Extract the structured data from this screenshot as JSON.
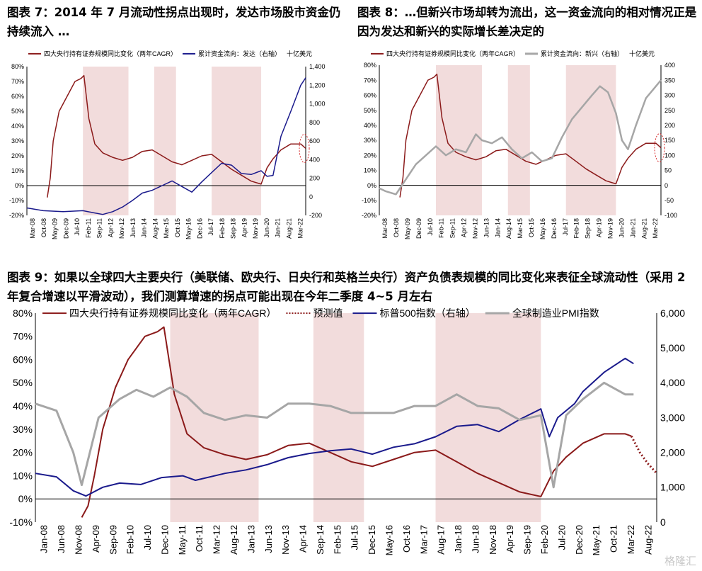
{
  "captions": {
    "fig7": "图表 7：2014 年 7 月流动性拐点出现时，发达市场股市资金仍持续流入 …",
    "fig8": "图表 8：…但新兴市场却转为流出，这一资金流向的相对情况正是因为发达和新兴的实际增长差决定的",
    "fig9": "图表 9：如果以全球四大主要央行（美联储、欧央行、日央行和英格兰央行）资产负债表规模的同比变化来表征全球流动性（采用 2 年复合增速以平滑波动），我们测算增速的拐点可能出现在今年二季度 4~5 月左右"
  },
  "watermark": "格隆汇",
  "colors": {
    "dark_red": "#8b1a1a",
    "navy": "#1a1a8c",
    "gray": "#a6a6a6",
    "shade": "#f2dcdc",
    "forecast": "#8b1a1a",
    "annotation": "#d62728"
  },
  "chart_data": [
    {
      "id": "fig7",
      "type": "line",
      "title": "",
      "legend": {
        "placement": "top",
        "items": [
          "四大央行持有证券规模同比变化（两年CAGR）",
          "累计资金流向：发达（右轴）",
          "十亿美元"
        ]
      },
      "x_tick_labels": [
        "Mar-08",
        "Oct-08",
        "May-09",
        "Dec-09",
        "Jul-10",
        "Feb-11",
        "Sep-11",
        "Apr-12",
        "Nov-12",
        "Jun-13",
        "Jan-14",
        "Aug-14",
        "Mar-15",
        "Oct-15",
        "May-16",
        "Dec-16",
        "Jul-17",
        "Feb-18",
        "Sep-18",
        "Apr-19",
        "Nov-19",
        "Jun-20",
        "Jan-21",
        "Aug-21",
        "Mar-22"
      ],
      "x_range": [
        2008.17,
        2022.25
      ],
      "y_left": {
        "range": [
          -20,
          80
        ],
        "ticks": [
          "-20%",
          "-10%",
          "0%",
          "10%",
          "20%",
          "30%",
          "40%",
          "50%",
          "60%",
          "70%",
          "80%"
        ]
      },
      "y_right": {
        "range": [
          -200,
          1400
        ],
        "ticks": [
          "-200",
          "0",
          "200",
          "400",
          "600",
          "800",
          "1,000",
          "1,200",
          "1,400"
        ]
      },
      "shaded_periods": [
        [
          2011.0,
          2013.3
        ],
        [
          2014.6,
          2015.7
        ],
        [
          2017.5,
          2020.0
        ]
      ],
      "series": [
        {
          "name": "四大央行持有证券规模同比变化（两年CAGR）",
          "axis": "left",
          "color": "#8b1a1a",
          "x": [
            2009.2,
            2009.35,
            2009.5,
            2009.8,
            2010.2,
            2010.6,
            2010.9,
            2011.05,
            2011.3,
            2011.6,
            2012.0,
            2012.5,
            2013.0,
            2013.5,
            2014.0,
            2014.5,
            2015.0,
            2015.5,
            2016.0,
            2016.5,
            2017.0,
            2017.5,
            2018.0,
            2018.5,
            2019.0,
            2019.5,
            2020.0,
            2020.3,
            2020.6,
            2021.0,
            2021.5,
            2022.0,
            2022.25
          ],
          "y": [
            -8,
            5,
            30,
            50,
            60,
            70,
            72,
            74,
            45,
            28,
            22,
            19,
            17,
            19,
            23,
            24,
            20,
            16,
            14,
            17,
            20,
            21,
            16,
            11,
            7,
            3,
            1,
            12,
            18,
            24,
            28,
            28,
            25
          ]
        },
        {
          "name": "累计资金流向：发达（右轴）",
          "axis": "right",
          "color": "#1a1a8c",
          "x": [
            2008.17,
            2009.0,
            2010.0,
            2011.0,
            2011.5,
            2012.0,
            2012.5,
            2013.0,
            2013.5,
            2014.0,
            2014.5,
            2015.0,
            2015.5,
            2016.0,
            2016.5,
            2017.0,
            2017.5,
            2018.0,
            2018.5,
            2019.0,
            2019.5,
            2020.0,
            2020.3,
            2020.6,
            2021.0,
            2021.5,
            2022.0,
            2022.25
          ],
          "y": [
            -120,
            -150,
            -160,
            -150,
            -170,
            -190,
            -160,
            -110,
            -40,
            40,
            70,
            120,
            170,
            110,
            50,
            160,
            260,
            360,
            340,
            250,
            240,
            280,
            220,
            230,
            650,
            920,
            1200,
            1280
          ]
        }
      ],
      "annotation": "dashed-circle-at-Mar-22"
    },
    {
      "id": "fig8",
      "type": "line",
      "title": "",
      "legend": {
        "placement": "top",
        "items": [
          "四大央行持有证券规模同比变化（两年CAGR）",
          "累计资金流向：新兴（右轴）",
          "十亿美元"
        ]
      },
      "x_tick_labels": [
        "Mar-08",
        "Oct-08",
        "May-09",
        "Dec-09",
        "Jul-10",
        "Feb-11",
        "Sep-11",
        "Apr-12",
        "Nov-12",
        "Jun-13",
        "Jan-14",
        "Aug-14",
        "Mar-15",
        "Oct-15",
        "May-16",
        "Dec-16",
        "Jul-17",
        "Feb-18",
        "Sep-18",
        "Apr-19",
        "Nov-19",
        "Jun-20",
        "Jan-21",
        "Aug-21",
        "Mar-22"
      ],
      "x_range": [
        2008.17,
        2022.25
      ],
      "y_left": {
        "range": [
          -20,
          80
        ],
        "ticks": [
          "-20%",
          "-10%",
          "0%",
          "10%",
          "20%",
          "30%",
          "40%",
          "50%",
          "60%",
          "70%",
          "80%"
        ]
      },
      "y_right": {
        "range": [
          -100,
          400
        ],
        "ticks": [
          "-100",
          "-50",
          "0",
          "50",
          "100",
          "150",
          "200",
          "250",
          "300",
          "350",
          "400"
        ]
      },
      "shaded_periods": [
        [
          2011.0,
          2013.3
        ],
        [
          2014.6,
          2015.7
        ],
        [
          2017.5,
          2020.0
        ]
      ],
      "series": [
        {
          "name": "四大央行持有证券规模同比变化（两年CAGR）",
          "axis": "left",
          "color": "#8b1a1a",
          "x": [
            2009.2,
            2009.35,
            2009.5,
            2009.8,
            2010.2,
            2010.6,
            2010.9,
            2011.05,
            2011.3,
            2011.6,
            2012.0,
            2012.5,
            2013.0,
            2013.5,
            2014.0,
            2014.5,
            2015.0,
            2015.5,
            2016.0,
            2016.5,
            2017.0,
            2017.5,
            2018.0,
            2018.5,
            2019.0,
            2019.5,
            2020.0,
            2020.3,
            2020.6,
            2021.0,
            2021.5,
            2022.0,
            2022.25
          ],
          "y": [
            -8,
            5,
            30,
            50,
            60,
            70,
            72,
            74,
            45,
            28,
            22,
            19,
            17,
            19,
            23,
            24,
            20,
            16,
            14,
            17,
            20,
            21,
            16,
            11,
            7,
            3,
            1,
            12,
            18,
            24,
            28,
            28,
            25
          ]
        },
        {
          "name": "累计资金流向：新兴（右轴）",
          "axis": "right",
          "color": "#a6a6a6",
          "x": [
            2008.17,
            2008.5,
            2009.0,
            2009.5,
            2010.0,
            2010.5,
            2011.0,
            2011.5,
            2012.0,
            2012.5,
            2013.0,
            2013.3,
            2013.8,
            2014.3,
            2014.8,
            2015.3,
            2015.8,
            2016.3,
            2016.8,
            2017.3,
            2017.8,
            2018.3,
            2018.8,
            2019.2,
            2019.6,
            2020.0,
            2020.3,
            2020.6,
            2021.0,
            2021.5,
            2022.0,
            2022.25
          ],
          "y": [
            -10,
            -20,
            -30,
            20,
            70,
            100,
            130,
            100,
            120,
            110,
            170,
            150,
            140,
            160,
            120,
            90,
            110,
            80,
            90,
            160,
            220,
            260,
            300,
            330,
            310,
            240,
            150,
            120,
            200,
            290,
            330,
            350
          ]
        }
      ],
      "annotation": "dashed-circle-at-Mar-22"
    },
    {
      "id": "fig9",
      "type": "line",
      "title": "",
      "legend": {
        "placement": "top",
        "items": [
          "四大央行持有证券规模同比变化（两年CAGR）",
          "预测值",
          "标普500指数（右轴）",
          "全球制造业PMI指数"
        ]
      },
      "x_tick_labels": [
        "Jan-08",
        "Jun-08",
        "Nov-08",
        "Apr-09",
        "Sep-09",
        "Feb-10",
        "Jul-10",
        "Dec-10",
        "May-11",
        "Oct-11",
        "Mar-12",
        "Aug-12",
        "Jan-13",
        "Jun-13",
        "Nov-13",
        "Apr-14",
        "Sep-14",
        "Feb-15",
        "Jul-15",
        "Dec-15",
        "May-16",
        "Oct-16",
        "Mar-17",
        "Aug-17",
        "Jan-18",
        "Jun-18",
        "Nov-18",
        "Apr-19",
        "Sep-19",
        "Feb-20",
        "Jul-20",
        "Dec-20",
        "May-21",
        "Oct-21",
        "Mar-22",
        "Aug-22"
      ],
      "x_range": [
        2008.0,
        2022.75
      ],
      "y_left": {
        "range": [
          -10,
          80
        ],
        "ticks": [
          "-10%",
          "0%",
          "10%",
          "20%",
          "30%",
          "40%",
          "50%",
          "60%",
          "70%",
          "80%"
        ]
      },
      "y_right": {
        "range": [
          0,
          6000
        ],
        "ticks": [
          "0",
          "1,000",
          "2,000",
          "3,000",
          "4,000",
          "5,000",
          "6,000"
        ]
      },
      "shaded_periods": [
        [
          2011.2,
          2013.3
        ],
        [
          2014.6,
          2015.8
        ],
        [
          2017.5,
          2020.0
        ]
      ],
      "series": [
        {
          "name": "四大央行持有证券规模同比变化（两年CAGR）",
          "axis": "left",
          "color": "#8b1a1a",
          "x": [
            2009.1,
            2009.25,
            2009.4,
            2009.6,
            2009.9,
            2010.2,
            2010.6,
            2010.9,
            2011.05,
            2011.3,
            2011.6,
            2012.0,
            2012.5,
            2013.0,
            2013.5,
            2014.0,
            2014.5,
            2015.0,
            2015.5,
            2016.0,
            2016.5,
            2017.0,
            2017.5,
            2018.0,
            2018.5,
            2019.0,
            2019.5,
            2020.0,
            2020.3,
            2020.6,
            2021.0,
            2021.5,
            2022.0,
            2022.15
          ],
          "y": [
            -8,
            -3,
            10,
            30,
            48,
            60,
            70,
            72,
            74,
            45,
            28,
            22,
            19,
            17,
            19,
            23,
            24,
            20,
            16,
            14,
            17,
            20,
            21,
            16,
            11,
            7,
            3,
            1,
            12,
            18,
            24,
            28,
            28,
            27
          ]
        },
        {
          "name": "预测值",
          "axis": "left",
          "color": "#8b1a1a",
          "dotted": true,
          "x": [
            2022.15,
            2022.35,
            2022.55,
            2022.75
          ],
          "y": [
            27,
            20,
            15,
            11
          ]
        },
        {
          "name": "标普500指数（右轴）",
          "axis": "right",
          "color": "#1a1a8c",
          "x": [
            2008.0,
            2008.5,
            2008.9,
            2009.2,
            2009.6,
            2010.0,
            2010.5,
            2011.0,
            2011.5,
            2011.8,
            2012.5,
            2013.0,
            2013.5,
            2014.0,
            2014.5,
            2015.0,
            2015.5,
            2016.0,
            2016.5,
            2017.0,
            2017.5,
            2018.0,
            2018.5,
            2019.0,
            2019.5,
            2020.0,
            2020.2,
            2020.4,
            2020.8,
            2021.0,
            2021.5,
            2022.0,
            2022.2
          ],
          "y": [
            1400,
            1300,
            900,
            750,
            1000,
            1120,
            1080,
            1280,
            1330,
            1200,
            1400,
            1500,
            1650,
            1850,
            1970,
            2050,
            2100,
            1950,
            2150,
            2250,
            2450,
            2750,
            2800,
            2600,
            2950,
            3250,
            2450,
            3000,
            3400,
            3750,
            4300,
            4700,
            4550
          ]
        },
        {
          "name": "全球制造业PMI指数",
          "axis": "left",
          "color": "#a6a6a6",
          "x": [
            2008.0,
            2008.5,
            2008.9,
            2009.1,
            2009.5,
            2010.0,
            2010.4,
            2010.8,
            2011.2,
            2011.6,
            2012.0,
            2012.5,
            2013.0,
            2013.5,
            2014.0,
            2014.5,
            2015.0,
            2015.5,
            2016.0,
            2016.5,
            2017.0,
            2017.5,
            2018.0,
            2018.5,
            2019.0,
            2019.5,
            2020.0,
            2020.3,
            2020.6,
            2021.0,
            2021.5,
            2022.0,
            2022.2
          ],
          "y": [
            41,
            38,
            20,
            6,
            35,
            43,
            47,
            44,
            48,
            44,
            37,
            34,
            36,
            35,
            41,
            41,
            40,
            37,
            37,
            37,
            40,
            40,
            45,
            40,
            39,
            34,
            36,
            5,
            36,
            43,
            50,
            45,
            45
          ]
        }
      ]
    }
  ]
}
